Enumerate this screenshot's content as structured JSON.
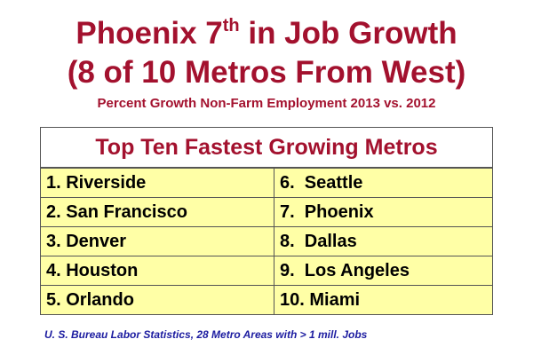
{
  "header": {
    "title_line1": {
      "lead": "Phoenix 7",
      "superscript": "th",
      "rest": "in Job Growth"
    },
    "title_line2": "(8 of 10 Metros From West)",
    "subtitle": "Percent Growth Non-Farm Employment 2013 vs. 2012"
  },
  "table": {
    "title": "Top Ten Fastest Growing Metros",
    "rows": [
      [
        "1. Riverside",
        "6.  Seattle"
      ],
      [
        "2. San Francisco",
        "7.  Phoenix"
      ],
      [
        "3. Denver",
        "8.  Dallas"
      ],
      [
        "4. Houston",
        "9.  Los Angeles"
      ],
      [
        "5. Orlando",
        "10. Miami"
      ]
    ]
  },
  "footnote": "U. S. Bureau Labor Statistics, 28 Metro Areas with > 1 mill. Jobs"
}
